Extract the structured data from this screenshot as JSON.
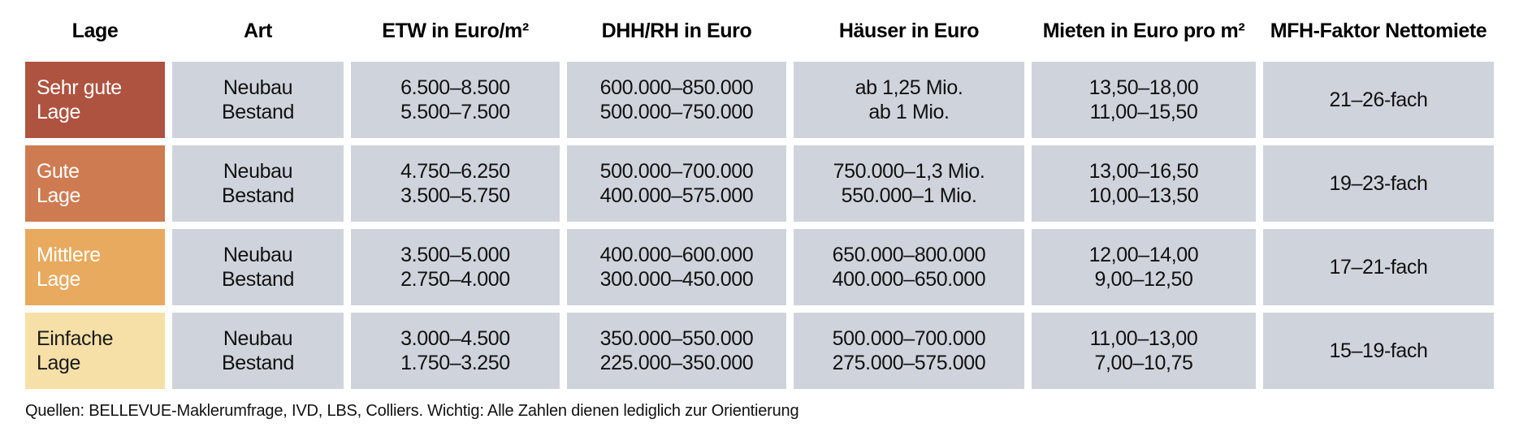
{
  "header": {
    "columns": [
      {
        "label": "Lage"
      },
      {
        "label": "Art"
      },
      {
        "label": "ETW in Euro/m²"
      },
      {
        "label": "DHH/RH in Euro"
      },
      {
        "label": "Häuser in Euro"
      },
      {
        "label": "Mieten in Euro pro m²"
      },
      {
        "label": "MFH-Faktor Nettomiete"
      }
    ]
  },
  "colors": {
    "cell_gray": "#cfd4dc",
    "sehr_gute_lage": "#ae5340",
    "gute_lage": "#ce7b52",
    "mittlere_lage": "#e8aa5f",
    "einfache_lage": "#f6e0a7"
  },
  "rows": [
    {
      "lage": [
        "Sehr gute",
        "Lage"
      ],
      "lage_bg": "#ae5340",
      "lage_fg": "#ffffff",
      "art": [
        "Neubau",
        "Bestand"
      ],
      "etw": [
        "6.500–8.500",
        "5.500–7.500"
      ],
      "dhh_rh": [
        "600.000–850.000",
        "500.000–750.000"
      ],
      "haeuser": [
        "ab 1,25 Mio.",
        "ab 1 Mio."
      ],
      "mieten": [
        "13,50–18,00",
        "11,00–15,50"
      ],
      "mfh_faktor": "21–26-fach"
    },
    {
      "lage": [
        "Gute",
        "Lage"
      ],
      "lage_bg": "#ce7b52",
      "lage_fg": "#ffffff",
      "art": [
        "Neubau",
        "Bestand"
      ],
      "etw": [
        "4.750–6.250",
        "3.500–5.750"
      ],
      "dhh_rh": [
        "500.000–700.000",
        "400.000–575.000"
      ],
      "haeuser": [
        "750.000–1,3 Mio.",
        "550.000–1 Mio."
      ],
      "mieten": [
        "13,00–16,50",
        "10,00–13,50"
      ],
      "mfh_faktor": "19–23-fach"
    },
    {
      "lage": [
        "Mittlere",
        "Lage"
      ],
      "lage_bg": "#e8aa5f",
      "lage_fg": "#ffffff",
      "art": [
        "Neubau",
        "Bestand"
      ],
      "etw": [
        "3.500–5.000",
        "2.750–4.000"
      ],
      "dhh_rh": [
        "400.000–600.000",
        "300.000–450.000"
      ],
      "haeuser": [
        "650.000–800.000",
        "400.000–650.000"
      ],
      "mieten": [
        "12,00–14,00",
        "9,00–12,50"
      ],
      "mfh_faktor": "17–21-fach"
    },
    {
      "lage": [
        "Einfache",
        "Lage"
      ],
      "lage_bg": "#f6e0a7",
      "lage_fg": "#1a1a1a",
      "art": [
        "Neubau",
        "Bestand"
      ],
      "etw": [
        "3.000–4.500",
        "1.750–3.250"
      ],
      "dhh_rh": [
        "350.000–550.000",
        "225.000–350.000"
      ],
      "haeuser": [
        "500.000–700.000",
        "275.000–575.000"
      ],
      "mieten": [
        "11,00–13,00",
        "7,00–10,75"
      ],
      "mfh_faktor": "15–19-fach"
    }
  ],
  "footer": {
    "source_note": "Quellen: BELLEVUE-Maklerumfrage, IVD, LBS, Colliers. Wichtig: Alle Zahlen dienen lediglich zur Orientierung"
  },
  "chart_data": {
    "type": "table",
    "columns": [
      "Lage",
      "Art",
      "ETW in Euro/m²",
      "DHH/RH in Euro",
      "Häuser in Euro",
      "Mieten in Euro pro m²",
      "MFH-Faktor Nettomiete"
    ],
    "rows": [
      [
        "Sehr gute Lage",
        "Neubau",
        "6.500–8.500",
        "600.000–850.000",
        "ab 1,25 Mio.",
        "13,50–18,00",
        "21–26-fach"
      ],
      [
        "Sehr gute Lage",
        "Bestand",
        "5.500–7.500",
        "500.000–750.000",
        "ab 1 Mio.",
        "11,00–15,50",
        "21–26-fach"
      ],
      [
        "Gute Lage",
        "Neubau",
        "4.750–6.250",
        "500.000–700.000",
        "750.000–1,3 Mio.",
        "13,00–16,50",
        "19–23-fach"
      ],
      [
        "Gute Lage",
        "Bestand",
        "3.500–5.750",
        "400.000–575.000",
        "550.000–1 Mio.",
        "10,00–13,50",
        "19–23-fach"
      ],
      [
        "Mittlere Lage",
        "Neubau",
        "3.500–5.000",
        "400.000–600.000",
        "650.000–800.000",
        "12,00–14,00",
        "17–21-fach"
      ],
      [
        "Mittlere Lage",
        "Bestand",
        "2.750–4.000",
        "300.000–450.000",
        "400.000–650.000",
        "9,00–12,50",
        "17–21-fach"
      ],
      [
        "Einfache Lage",
        "Neubau",
        "3.000–4.500",
        "350.000–550.000",
        "500.000–700.000",
        "11,00–13,00",
        "15–19-fach"
      ],
      [
        "Einfache Lage",
        "Bestand",
        "1.750–3.250",
        "225.000–350.000",
        "275.000–575.000",
        "7,00–10,75",
        "15–19-fach"
      ]
    ],
    "title": "",
    "legend_position": "none",
    "grid": false
  }
}
